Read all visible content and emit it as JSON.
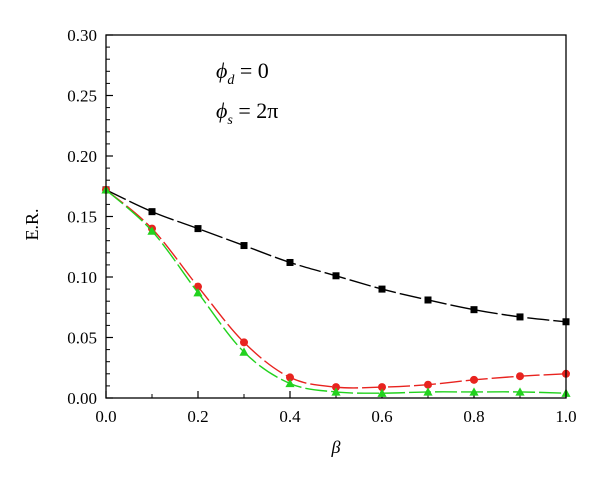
{
  "chart_data": {
    "type": "line",
    "xlabel": "β",
    "ylabel": "E.R.",
    "xlim": [
      0.0,
      1.0
    ],
    "ylim": [
      0.0,
      0.3
    ],
    "xticks": [
      "0.0",
      "0.2",
      "0.4",
      "0.6",
      "0.8",
      "1.0"
    ],
    "yticks": [
      "0.00",
      "0.05",
      "0.10",
      "0.15",
      "0.20",
      "0.25",
      "0.30"
    ],
    "annotations": [
      {
        "symbol": "ϕ",
        "sub": "d",
        "rest": " = 0"
      },
      {
        "symbol": "ϕ",
        "sub": "s",
        "rest": " = 2π"
      }
    ],
    "x": [
      0.0,
      0.1,
      0.2,
      0.3,
      0.4,
      0.5,
      0.6,
      0.7,
      0.8,
      0.9,
      1.0
    ],
    "series": [
      {
        "color": "#000000",
        "marker": "square",
        "values": [
          0.172,
          0.154,
          0.14,
          0.126,
          0.112,
          0.101,
          0.09,
          0.081,
          0.073,
          0.067,
          0.063
        ]
      },
      {
        "color": "#e8231f",
        "marker": "circle",
        "values": [
          0.172,
          0.14,
          0.092,
          0.046,
          0.017,
          0.009,
          0.009,
          0.011,
          0.015,
          0.018,
          0.02
        ]
      },
      {
        "color": "#22d21e",
        "marker": "triangle",
        "values": [
          0.172,
          0.138,
          0.087,
          0.038,
          0.012,
          0.005,
          0.004,
          0.005,
          0.005,
          0.005,
          0.004
        ]
      }
    ]
  }
}
